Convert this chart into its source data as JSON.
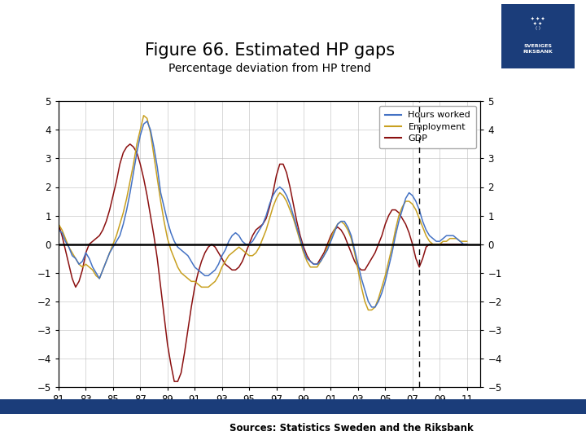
{
  "title": "Figure 66. Estimated HP gaps",
  "subtitle": "Percentage deviation from HP trend",
  "sources_text": "Sources: Statistics Sweden and the Riksbank",
  "legend_labels": [
    "Hours worked",
    "Employment",
    "GDP"
  ],
  "line_colors": [
    "#4472C4",
    "#C8A020",
    "#8B1010"
  ],
  "xlim": [
    1981,
    2012
  ],
  "ylim": [
    -5,
    5
  ],
  "yticks": [
    -5,
    -4,
    -3,
    -2,
    -1,
    0,
    1,
    2,
    3,
    4,
    5
  ],
  "xtick_positions": [
    1981,
    1983,
    1985,
    1987,
    1989,
    1991,
    1993,
    1995,
    1997,
    1999,
    2001,
    2003,
    2005,
    2007,
    2009,
    2011
  ],
  "xtick_labels": [
    "81",
    "83",
    "85",
    "87",
    "89",
    "91",
    "93",
    "95",
    "97",
    "99",
    "01",
    "03",
    "05",
    "07",
    "09",
    "11"
  ],
  "dashed_line_x": 2007.5,
  "title_fontsize": 15,
  "subtitle_fontsize": 10,
  "background_color": "#FFFFFF",
  "bar_color": "#1B3D7A",
  "riksbank_bg": "#1B3D7A",
  "zero_line_color": "#000000",
  "grid_color": "#BBBBBB",
  "hours_worked": [
    0.5,
    0.4,
    0.1,
    -0.1,
    -0.4,
    -0.5,
    -0.7,
    -0.6,
    -0.3,
    -0.5,
    -0.8,
    -1.0,
    -1.2,
    -0.9,
    -0.6,
    -0.3,
    -0.1,
    0.1,
    0.3,
    0.7,
    1.2,
    1.8,
    2.5,
    3.2,
    3.8,
    4.2,
    4.3,
    4.0,
    3.4,
    2.7,
    1.8,
    1.3,
    0.8,
    0.4,
    0.1,
    -0.1,
    -0.2,
    -0.3,
    -0.4,
    -0.6,
    -0.8,
    -0.9,
    -1.0,
    -1.1,
    -1.1,
    -1.0,
    -0.9,
    -0.7,
    -0.4,
    -0.2,
    0.1,
    0.3,
    0.4,
    0.3,
    0.1,
    0.0,
    0.0,
    0.1,
    0.3,
    0.5,
    0.7,
    1.0,
    1.4,
    1.7,
    1.9,
    2.0,
    1.9,
    1.7,
    1.4,
    1.0,
    0.6,
    0.2,
    -0.2,
    -0.5,
    -0.6,
    -0.7,
    -0.7,
    -0.6,
    -0.4,
    -0.2,
    0.1,
    0.4,
    0.7,
    0.8,
    0.8,
    0.6,
    0.3,
    -0.2,
    -0.7,
    -1.2,
    -1.6,
    -2.0,
    -2.2,
    -2.2,
    -2.0,
    -1.7,
    -1.3,
    -0.8,
    -0.3,
    0.3,
    0.8,
    1.2,
    1.6,
    1.8,
    1.7,
    1.5,
    1.2,
    0.8,
    0.5,
    0.3,
    0.2,
    0.1,
    0.1,
    0.2,
    0.3,
    0.3,
    0.3,
    0.2,
    0.1,
    0.0,
    0.0
  ],
  "employment": [
    0.7,
    0.5,
    0.2,
    -0.1,
    -0.3,
    -0.5,
    -0.7,
    -0.8,
    -0.7,
    -0.8,
    -0.9,
    -1.1,
    -1.2,
    -0.9,
    -0.6,
    -0.3,
    0.0,
    0.3,
    0.7,
    1.1,
    1.6,
    2.2,
    2.8,
    3.5,
    4.0,
    4.5,
    4.4,
    3.9,
    3.1,
    2.3,
    1.5,
    0.8,
    0.2,
    -0.2,
    -0.5,
    -0.8,
    -1.0,
    -1.1,
    -1.2,
    -1.3,
    -1.3,
    -1.4,
    -1.5,
    -1.5,
    -1.5,
    -1.4,
    -1.3,
    -1.1,
    -0.8,
    -0.6,
    -0.4,
    -0.3,
    -0.2,
    -0.1,
    -0.2,
    -0.3,
    -0.4,
    -0.4,
    -0.3,
    -0.1,
    0.2,
    0.5,
    0.9,
    1.3,
    1.6,
    1.8,
    1.7,
    1.5,
    1.2,
    0.9,
    0.5,
    0.1,
    -0.3,
    -0.6,
    -0.8,
    -0.8,
    -0.8,
    -0.6,
    -0.4,
    -0.1,
    0.2,
    0.5,
    0.7,
    0.8,
    0.7,
    0.5,
    0.2,
    -0.3,
    -0.9,
    -1.5,
    -2.0,
    -2.3,
    -2.3,
    -2.2,
    -1.9,
    -1.5,
    -1.1,
    -0.6,
    -0.1,
    0.5,
    1.0,
    1.3,
    1.5,
    1.5,
    1.4,
    1.2,
    0.9,
    0.6,
    0.3,
    0.1,
    0.0,
    0.0,
    0.0,
    0.1,
    0.1,
    0.2,
    0.2,
    0.2,
    0.1,
    0.1,
    0.1
  ],
  "gdp": [
    0.7,
    0.3,
    -0.2,
    -0.7,
    -1.2,
    -1.5,
    -1.3,
    -0.9,
    -0.3,
    0.0,
    0.1,
    0.2,
    0.3,
    0.5,
    0.8,
    1.2,
    1.7,
    2.2,
    2.8,
    3.2,
    3.4,
    3.5,
    3.4,
    3.2,
    2.8,
    2.3,
    1.7,
    1.0,
    0.3,
    -0.5,
    -1.5,
    -2.5,
    -3.5,
    -4.2,
    -4.8,
    -4.8,
    -4.5,
    -3.8,
    -3.0,
    -2.2,
    -1.5,
    -1.0,
    -0.6,
    -0.3,
    -0.1,
    0.0,
    -0.1,
    -0.3,
    -0.5,
    -0.7,
    -0.8,
    -0.9,
    -0.9,
    -0.8,
    -0.6,
    -0.3,
    0.0,
    0.3,
    0.5,
    0.6,
    0.7,
    0.9,
    1.3,
    1.8,
    2.4,
    2.8,
    2.8,
    2.5,
    2.0,
    1.4,
    0.8,
    0.3,
    -0.1,
    -0.4,
    -0.6,
    -0.7,
    -0.7,
    -0.5,
    -0.3,
    0.0,
    0.3,
    0.5,
    0.6,
    0.5,
    0.3,
    0.0,
    -0.3,
    -0.6,
    -0.8,
    -0.9,
    -0.9,
    -0.7,
    -0.5,
    -0.3,
    0.0,
    0.3,
    0.7,
    1.0,
    1.2,
    1.2,
    1.1,
    0.9,
    0.7,
    0.4,
    0.0,
    -0.5,
    -0.8,
    -0.5,
    -0.1,
    0.0,
    0.0,
    0.0,
    0.0,
    0.0,
    0.0,
    0.0,
    0.0,
    0.0,
    0.0,
    0.0,
    0.0
  ]
}
